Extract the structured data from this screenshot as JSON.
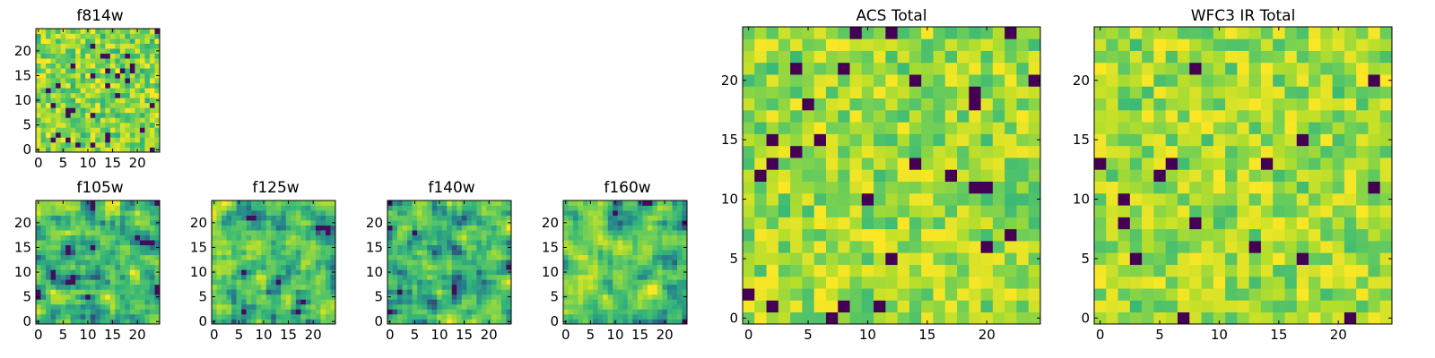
{
  "figure": {
    "palette": [
      "#440154",
      "#26828e",
      "#35b779",
      "#6ece58",
      "#b5de2b",
      "#fde725"
    ]
  },
  "chart_data": [
    {
      "type": "heatmap",
      "title": "f814w",
      "x_ticks": [
        0,
        5,
        10,
        15,
        20
      ],
      "y_ticks": [
        0,
        5,
        10,
        15,
        20
      ],
      "xlim": [
        -0.5,
        24.5
      ],
      "ylim": [
        -0.5,
        24.5
      ],
      "shape": [
        25,
        25
      ],
      "pattern": "fine speckled noise, mostly green-yellow with scattered dark purple pixels"
    },
    {
      "type": "heatmap",
      "title": "f105w",
      "x_ticks": [
        0,
        5,
        10,
        15,
        20
      ],
      "y_ticks": [
        0,
        5,
        10,
        15,
        20
      ],
      "xlim": [
        -0.5,
        24.5
      ],
      "ylim": [
        -0.5,
        24.5
      ],
      "shape": [
        25,
        25
      ],
      "pattern": "smoothed noise, green-yellow with few dark spots"
    },
    {
      "type": "heatmap",
      "title": "f125w",
      "x_ticks": [
        0,
        5,
        10,
        15,
        20
      ],
      "y_ticks": [
        0,
        5,
        10,
        15,
        20
      ],
      "xlim": [
        -0.5,
        24.5
      ],
      "ylim": [
        -0.5,
        24.5
      ],
      "shape": [
        25,
        25
      ],
      "pattern": "smoothed noise, green-yellow with blue-teal blobs"
    },
    {
      "type": "heatmap",
      "title": "f140w",
      "x_ticks": [
        0,
        5,
        10,
        15,
        20
      ],
      "y_ticks": [
        0,
        5,
        10,
        15,
        20
      ],
      "xlim": [
        -0.5,
        24.5
      ],
      "ylim": [
        -0.5,
        24.5
      ],
      "shape": [
        25,
        25
      ],
      "pattern": "smoothed noise with teal and purple blobs"
    },
    {
      "type": "heatmap",
      "title": "f160w",
      "x_ticks": [
        0,
        5,
        10,
        15,
        20
      ],
      "y_ticks": [
        0,
        5,
        10,
        15,
        20
      ],
      "xlim": [
        -0.5,
        24.5
      ],
      "ylim": [
        -0.5,
        24.5
      ],
      "shape": [
        25,
        25
      ],
      "pattern": "smoothed noise with teal and purple blobs"
    },
    {
      "type": "heatmap",
      "title": "ACS Total",
      "x_ticks": [
        0,
        5,
        10,
        15,
        20
      ],
      "y_ticks": [
        0,
        5,
        10,
        15,
        20
      ],
      "xlim": [
        -0.5,
        24.5
      ],
      "ylim": [
        -0.5,
        24.5
      ],
      "shape": [
        25,
        25
      ],
      "pattern": "pixel noise, mostly green with yellow and a few dark purple pixels"
    },
    {
      "type": "heatmap",
      "title": "WFC3 IR Total",
      "x_ticks": [
        0,
        5,
        10,
        15,
        20
      ],
      "y_ticks": [
        0,
        5,
        10,
        15,
        20
      ],
      "xlim": [
        -0.5,
        24.5
      ],
      "ylim": [
        -0.5,
        24.5
      ],
      "shape": [
        25,
        25
      ],
      "pattern": "pixel noise, mostly green with yellow and a few dark purple pixels"
    }
  ]
}
